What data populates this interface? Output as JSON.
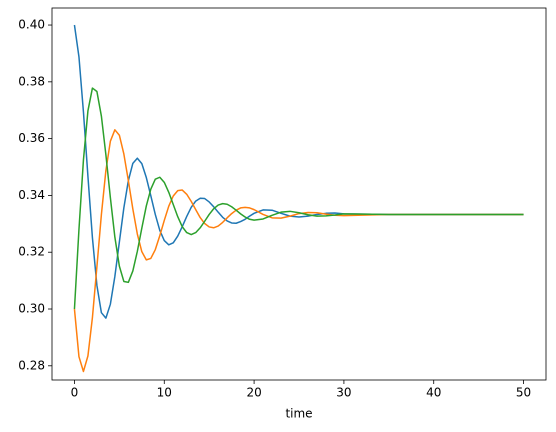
{
  "chart_data": {
    "type": "line",
    "xlabel": "time",
    "x": [
      0,
      0.5,
      1,
      1.5,
      2,
      2.5,
      3,
      3.5,
      4,
      4.5,
      5,
      5.5,
      6,
      6.5,
      7,
      7.5,
      8,
      8.5,
      9,
      9.5,
      10,
      10.5,
      11,
      11.5,
      12,
      12.5,
      13,
      13.5,
      14,
      14.5,
      15,
      15.5,
      16,
      16.5,
      17,
      17.5,
      18,
      18.5,
      19,
      19.5,
      20,
      21,
      22,
      23,
      24,
      25,
      26,
      27,
      28,
      29,
      30,
      35,
      40,
      45,
      50
    ],
    "series": [
      {
        "color": "#1f77b4",
        "values": [
          0.4,
          0.3888,
          0.3694,
          0.3467,
          0.3251,
          0.3083,
          0.2987,
          0.2968,
          0.3017,
          0.3115,
          0.3236,
          0.3356,
          0.3452,
          0.3513,
          0.3531,
          0.3512,
          0.3463,
          0.3399,
          0.3333,
          0.3277,
          0.3241,
          0.3226,
          0.3233,
          0.3257,
          0.329,
          0.3326,
          0.3358,
          0.338,
          0.339,
          0.3389,
          0.3377,
          0.336,
          0.3341,
          0.3323,
          0.331,
          0.3303,
          0.3302,
          0.3308,
          0.3316,
          0.3327,
          0.3337,
          0.3349,
          0.3348,
          0.3337,
          0.3327,
          0.3324,
          0.3327,
          0.3333,
          0.3337,
          0.3338,
          0.3335,
          0.3333,
          0.3333,
          0.3333,
          0.3333
        ]
      },
      {
        "color": "#ff7f0e",
        "values": [
          0.3,
          0.2832,
          0.278,
          0.2835,
          0.297,
          0.3149,
          0.3333,
          0.3488,
          0.3591,
          0.3631,
          0.3612,
          0.3546,
          0.3452,
          0.3352,
          0.3264,
          0.3202,
          0.3173,
          0.3178,
          0.3209,
          0.3258,
          0.3312,
          0.3362,
          0.3398,
          0.3417,
          0.3419,
          0.3404,
          0.3379,
          0.335,
          0.3322,
          0.3301,
          0.3289,
          0.3286,
          0.3292,
          0.3305,
          0.3321,
          0.3336,
          0.3348,
          0.3356,
          0.3358,
          0.3356,
          0.335,
          0.3333,
          0.3321,
          0.332,
          0.3327,
          0.3336,
          0.334,
          0.3339,
          0.3334,
          0.333,
          0.3329,
          0.3333,
          0.3333,
          0.3333,
          0.3333
        ]
      },
      {
        "color": "#2ca02c",
        "values": [
          0.3,
          0.328,
          0.3525,
          0.3698,
          0.3778,
          0.3766,
          0.3679,
          0.3543,
          0.3392,
          0.3253,
          0.3151,
          0.3097,
          0.3094,
          0.3134,
          0.3203,
          0.3285,
          0.3363,
          0.3422,
          0.3457,
          0.3464,
          0.3446,
          0.3411,
          0.3368,
          0.3325,
          0.329,
          0.3269,
          0.3262,
          0.3269,
          0.3286,
          0.3309,
          0.3333,
          0.3353,
          0.3366,
          0.3371,
          0.3369,
          0.336,
          0.3348,
          0.3335,
          0.3324,
          0.3316,
          0.3313,
          0.3317,
          0.333,
          0.3341,
          0.3344,
          0.3339,
          0.3332,
          0.3327,
          0.3328,
          0.3331,
          0.3335,
          0.3333,
          0.3333,
          0.3333,
          0.3333
        ]
      }
    ],
    "xlim": [
      -2.5,
      52.5
    ],
    "xticks": [
      0,
      10,
      20,
      30,
      40,
      50
    ],
    "ylim": [
      0.275,
      0.406
    ],
    "yticks": [
      0.28,
      {
        "value": 0.3,
        "label": "0.30"
      },
      0.32,
      0.34,
      0.36,
      0.38,
      {
        "value": 0.4,
        "label": "0.40"
      }
    ],
    "grid": false
  }
}
